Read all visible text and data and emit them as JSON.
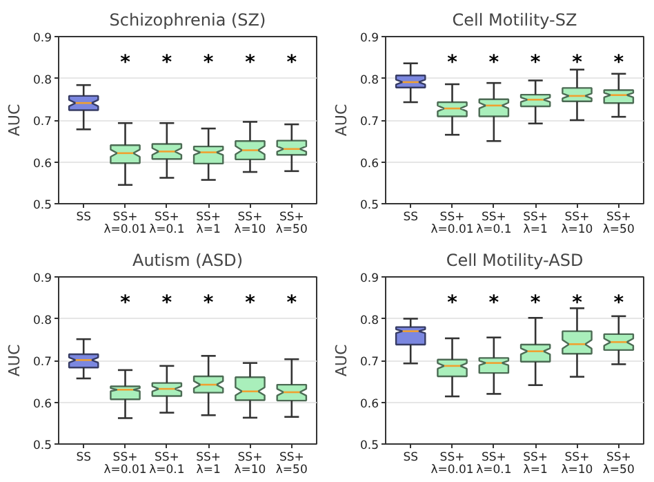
{
  "chart_data": [
    {
      "type": "box",
      "title": "Schizophrenia (SZ)",
      "ylabel": "AUC",
      "categories": [
        "SS",
        "SS+\nλ=0.01",
        "SS+\nλ=0.1",
        "SS+\nλ=1",
        "SS+\nλ=10",
        "SS+\nλ=50"
      ],
      "colors": [
        "#7b87e0",
        "#a9efbb",
        "#a9efbb",
        "#a9efbb",
        "#a9efbb",
        "#a9efbb"
      ],
      "ylim": [
        0.5,
        0.9
      ],
      "yticks": [
        0.5,
        0.6,
        0.7,
        0.8,
        0.9
      ],
      "grid": "y",
      "boxes": [
        {
          "low": 0.678,
          "q1": 0.724,
          "median": 0.741,
          "q3": 0.758,
          "high": 0.784
        },
        {
          "low": 0.545,
          "q1": 0.597,
          "median": 0.621,
          "q3": 0.64,
          "high": 0.693
        },
        {
          "low": 0.562,
          "q1": 0.607,
          "median": 0.625,
          "q3": 0.643,
          "high": 0.693
        },
        {
          "low": 0.557,
          "q1": 0.596,
          "median": 0.623,
          "q3": 0.637,
          "high": 0.68
        },
        {
          "low": 0.576,
          "q1": 0.606,
          "median": 0.628,
          "q3": 0.65,
          "high": 0.696
        },
        {
          "low": 0.578,
          "q1": 0.617,
          "median": 0.631,
          "q3": 0.651,
          "high": 0.69
        }
      ],
      "annotations": [
        "*",
        "*",
        "*",
        "*",
        "*"
      ]
    },
    {
      "type": "box",
      "title": "Cell Motility-SZ",
      "ylabel": "AUC",
      "categories": [
        "SS",
        "SS+\nλ=0.01",
        "SS+\nλ=0.1",
        "SS+\nλ=1",
        "SS+\nλ=10",
        "SS+\nλ=50"
      ],
      "colors": [
        "#7b87e0",
        "#a9efbb",
        "#a9efbb",
        "#a9efbb",
        "#a9efbb",
        "#a9efbb"
      ],
      "ylim": [
        0.5,
        0.9
      ],
      "yticks": [
        0.5,
        0.6,
        0.7,
        0.8,
        0.9
      ],
      "grid": "y",
      "boxes": [
        {
          "low": 0.743,
          "q1": 0.778,
          "median": 0.791,
          "q3": 0.807,
          "high": 0.836
        },
        {
          "low": 0.665,
          "q1": 0.709,
          "median": 0.728,
          "q3": 0.743,
          "high": 0.786
        },
        {
          "low": 0.65,
          "q1": 0.709,
          "median": 0.735,
          "q3": 0.75,
          "high": 0.789
        },
        {
          "low": 0.692,
          "q1": 0.733,
          "median": 0.749,
          "q3": 0.761,
          "high": 0.795
        },
        {
          "low": 0.7,
          "q1": 0.745,
          "median": 0.758,
          "q3": 0.777,
          "high": 0.821
        },
        {
          "low": 0.708,
          "q1": 0.741,
          "median": 0.76,
          "q3": 0.772,
          "high": 0.811
        }
      ],
      "annotations": [
        "*",
        "*",
        "*",
        "*",
        "*"
      ]
    },
    {
      "type": "box",
      "title": "Autism (ASD)",
      "ylabel": "AUC",
      "categories": [
        "SS",
        "SS+\nλ=0.01",
        "SS+\nλ=0.1",
        "SS+\nλ=1",
        "SS+\nλ=10",
        "SS+\nλ=50"
      ],
      "colors": [
        "#7b87e0",
        "#a9efbb",
        "#a9efbb",
        "#a9efbb",
        "#a9efbb",
        "#a9efbb"
      ],
      "ylim": [
        0.5,
        0.9
      ],
      "yticks": [
        0.5,
        0.6,
        0.7,
        0.8,
        0.9
      ],
      "grid": "y",
      "boxes": [
        {
          "low": 0.657,
          "q1": 0.683,
          "median": 0.701,
          "q3": 0.715,
          "high": 0.751
        },
        {
          "low": 0.562,
          "q1": 0.607,
          "median": 0.63,
          "q3": 0.638,
          "high": 0.677
        },
        {
          "low": 0.575,
          "q1": 0.615,
          "median": 0.632,
          "q3": 0.646,
          "high": 0.687
        },
        {
          "low": 0.569,
          "q1": 0.623,
          "median": 0.642,
          "q3": 0.662,
          "high": 0.711
        },
        {
          "low": 0.563,
          "q1": 0.605,
          "median": 0.626,
          "q3": 0.66,
          "high": 0.694
        },
        {
          "low": 0.565,
          "q1": 0.604,
          "median": 0.624,
          "q3": 0.642,
          "high": 0.703
        }
      ],
      "annotations": [
        "*",
        "*",
        "*",
        "*",
        "*"
      ]
    },
    {
      "type": "box",
      "title": "Cell Motility-ASD",
      "ylabel": "AUC",
      "categories": [
        "SS",
        "SS+\nλ=0.01",
        "SS+\nλ=0.1",
        "SS+\nλ=1",
        "SS+\nλ=10",
        "SS+\nλ=50"
      ],
      "colors": [
        "#7b87e0",
        "#a9efbb",
        "#a9efbb",
        "#a9efbb",
        "#a9efbb",
        "#a9efbb"
      ],
      "ylim": [
        0.5,
        0.9
      ],
      "yticks": [
        0.5,
        0.6,
        0.7,
        0.8,
        0.9
      ],
      "grid": "y",
      "boxes": [
        {
          "low": 0.693,
          "q1": 0.738,
          "median": 0.77,
          "q3": 0.78,
          "high": 0.8
        },
        {
          "low": 0.614,
          "q1": 0.662,
          "median": 0.687,
          "q3": 0.702,
          "high": 0.753
        },
        {
          "low": 0.62,
          "q1": 0.67,
          "median": 0.694,
          "q3": 0.706,
          "high": 0.755
        },
        {
          "low": 0.641,
          "q1": 0.697,
          "median": 0.722,
          "q3": 0.738,
          "high": 0.802
        },
        {
          "low": 0.661,
          "q1": 0.716,
          "median": 0.739,
          "q3": 0.77,
          "high": 0.825
        },
        {
          "low": 0.691,
          "q1": 0.725,
          "median": 0.744,
          "q3": 0.763,
          "high": 0.806
        }
      ],
      "annotations": [
        "*",
        "*",
        "*",
        "*",
        "*"
      ]
    }
  ]
}
